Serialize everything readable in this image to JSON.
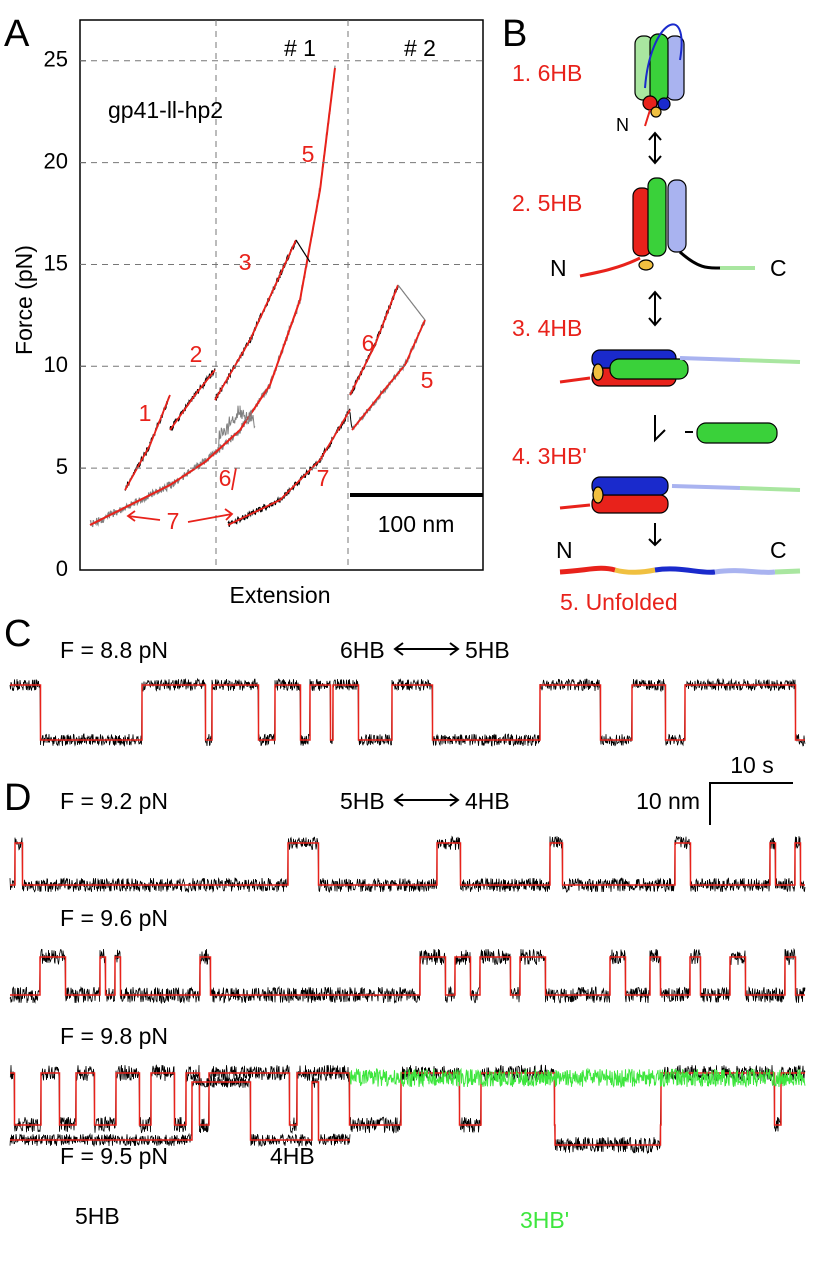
{
  "panel_a": {
    "label": "A",
    "sample": "gp41-ll-hp2",
    "y_label": "Force (pN)",
    "x_label": "Extension",
    "ylim": [
      0,
      27
    ],
    "yticks": [
      0,
      5,
      10,
      15,
      20,
      25
    ],
    "regions": [
      "# 1",
      "# 2"
    ],
    "scale_bar": "100 nm",
    "curve_labels": [
      "1",
      "2",
      "3",
      "5",
      "6",
      "7",
      "6",
      "5",
      "7"
    ]
  },
  "panel_b": {
    "label": "B",
    "states": [
      "1. 6HB",
      "2. 5HB",
      "3. 4HB",
      "4. 3HB'",
      "5. Unfolded"
    ],
    "termini": [
      "N",
      "N",
      "C",
      "N",
      "C"
    ]
  },
  "panel_c": {
    "label": "C",
    "force": "F = 8.8 pN",
    "transition": [
      "6HB",
      "5HB"
    ]
  },
  "scale_bar": {
    "time": "10 s",
    "distance": "10 nm"
  },
  "panel_d": {
    "label": "D",
    "transition": [
      "5HB",
      "4HB"
    ],
    "traces": [
      {
        "force": "F = 9.2 pN"
      },
      {
        "force": "F = 9.6 pN"
      },
      {
        "force": "F = 9.8 pN"
      },
      {
        "force": "F = 9.5 pN",
        "states": [
          "5HB",
          "4HB",
          "3HB'"
        ]
      }
    ]
  }
}
